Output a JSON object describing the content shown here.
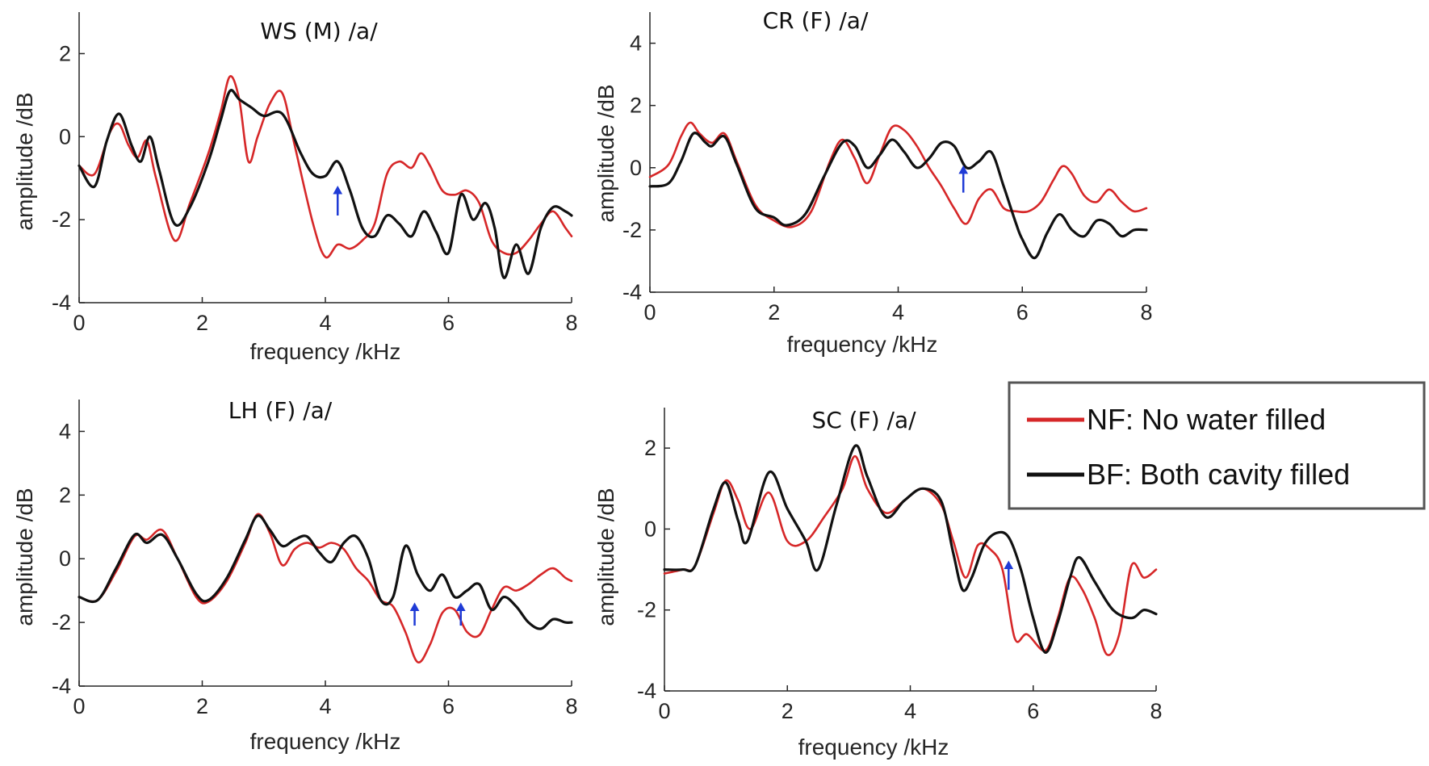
{
  "chart_data": [
    {
      "type": "line",
      "title": "WS (M) /a/",
      "xlabel": "frequency /kHz",
      "ylabel": "amplitude /dB",
      "xlim": [
        0,
        8
      ],
      "ylim": [
        -4,
        3
      ],
      "xticks": [
        "0",
        "2",
        "4",
        "6",
        "8"
      ],
      "yticks": [
        "-4",
        "-2",
        "0",
        "2"
      ],
      "series": [
        {
          "name": "NF: No water filled",
          "color": "#d62728",
          "x": [
            0,
            0.25,
            0.5,
            0.65,
            0.8,
            0.95,
            1.1,
            1.25,
            1.55,
            1.8,
            2.1,
            2.3,
            2.45,
            2.6,
            2.75,
            2.9,
            3.1,
            3.3,
            3.5,
            3.8,
            4.0,
            4.2,
            4.4,
            4.6,
            4.8,
            5.0,
            5.2,
            5.4,
            5.55,
            5.7,
            5.9,
            6.1,
            6.3,
            6.5,
            6.7,
            6.9,
            7.1,
            7.3,
            7.5,
            7.7,
            7.9,
            8.0
          ],
          "y": [
            -0.7,
            -0.9,
            0.1,
            0.3,
            -0.2,
            -0.5,
            -0.1,
            -1.0,
            -2.5,
            -1.6,
            -0.4,
            0.6,
            1.45,
            0.9,
            -0.6,
            0.0,
            0.8,
            1.05,
            -0.2,
            -2.1,
            -2.9,
            -2.6,
            -2.7,
            -2.5,
            -2.1,
            -0.9,
            -0.6,
            -0.75,
            -0.4,
            -0.7,
            -1.3,
            -1.4,
            -1.3,
            -1.6,
            -2.5,
            -2.8,
            -2.8,
            -2.5,
            -2.1,
            -1.8,
            -2.2,
            -2.4
          ]
        },
        {
          "name": "BF: Both cavity filled",
          "color": "#111111",
          "x": [
            0,
            0.25,
            0.45,
            0.65,
            0.85,
            1.0,
            1.15,
            1.3,
            1.55,
            1.8,
            2.1,
            2.3,
            2.45,
            2.6,
            2.8,
            3.0,
            3.3,
            3.6,
            3.8,
            4.0,
            4.2,
            4.4,
            4.6,
            4.8,
            5.0,
            5.2,
            5.4,
            5.6,
            5.8,
            6.0,
            6.2,
            6.4,
            6.6,
            6.75,
            6.9,
            7.1,
            7.3,
            7.5,
            7.7,
            7.9,
            8.0
          ],
          "y": [
            -0.7,
            -1.2,
            -0.1,
            0.55,
            -0.2,
            -0.6,
            0.0,
            -0.8,
            -2.1,
            -1.7,
            -0.6,
            0.4,
            1.1,
            0.9,
            0.7,
            0.5,
            0.55,
            -0.4,
            -0.9,
            -0.95,
            -0.6,
            -1.3,
            -2.2,
            -2.4,
            -1.9,
            -2.1,
            -2.4,
            -1.8,
            -2.3,
            -2.8,
            -1.4,
            -2.0,
            -1.6,
            -2.2,
            -3.4,
            -2.6,
            -3.3,
            -2.2,
            -1.7,
            -1.8,
            -1.9
          ]
        }
      ],
      "annotations": [
        {
          "type": "arrow",
          "x": 4.2,
          "y_tip": -1.2,
          "y_tail": -1.9,
          "color": "#1f3bd6"
        }
      ]
    },
    {
      "type": "line",
      "title": "CR (F) /a/",
      "xlabel": "frequency /kHz",
      "ylabel": "amplitude /dB",
      "xlim": [
        0,
        8
      ],
      "ylim": [
        -4,
        5
      ],
      "xticks": [
        "0",
        "2",
        "4",
        "6",
        "8"
      ],
      "yticks": [
        "-4",
        "-2",
        "0",
        "2",
        "4"
      ],
      "series": [
        {
          "name": "NF: No water filled",
          "color": "#d62728",
          "x": [
            0,
            0.3,
            0.5,
            0.65,
            0.8,
            1.0,
            1.2,
            1.4,
            1.7,
            2.0,
            2.3,
            2.6,
            2.9,
            3.1,
            3.3,
            3.5,
            3.7,
            3.9,
            4.1,
            4.3,
            4.5,
            4.7,
            4.9,
            5.1,
            5.3,
            5.5,
            5.7,
            5.9,
            6.1,
            6.3,
            6.5,
            6.65,
            6.8,
            7.0,
            7.2,
            7.4,
            7.6,
            7.8,
            8.0
          ],
          "y": [
            -0.3,
            0.1,
            1.0,
            1.45,
            1.1,
            0.8,
            1.1,
            0.2,
            -1.2,
            -1.7,
            -1.9,
            -1.4,
            0.2,
            0.9,
            0.3,
            -0.5,
            0.4,
            1.3,
            1.2,
            0.7,
            0.0,
            -0.6,
            -1.3,
            -1.8,
            -1.0,
            -0.7,
            -1.3,
            -1.4,
            -1.4,
            -1.1,
            -0.4,
            0.05,
            -0.2,
            -0.9,
            -1.1,
            -0.7,
            -1.1,
            -1.4,
            -1.3
          ]
        },
        {
          "name": "BF: Both cavity filled",
          "color": "#111111",
          "x": [
            0,
            0.3,
            0.5,
            0.7,
            0.9,
            1.0,
            1.2,
            1.4,
            1.7,
            2.0,
            2.2,
            2.5,
            2.8,
            3.1,
            3.3,
            3.5,
            3.7,
            3.9,
            4.1,
            4.3,
            4.5,
            4.7,
            4.9,
            5.1,
            5.3,
            5.5,
            5.7,
            5.9,
            6.0,
            6.2,
            6.4,
            6.6,
            6.8,
            7.0,
            7.2,
            7.4,
            7.6,
            7.8,
            8.0
          ],
          "y": [
            -0.6,
            -0.5,
            0.2,
            1.1,
            0.8,
            0.7,
            1.0,
            0.1,
            -1.3,
            -1.6,
            -1.85,
            -1.5,
            -0.3,
            0.8,
            0.7,
            0.0,
            0.4,
            0.9,
            0.5,
            0.0,
            0.3,
            0.8,
            0.7,
            0.0,
            0.2,
            0.5,
            -0.6,
            -1.8,
            -2.3,
            -2.9,
            -2.1,
            -1.5,
            -2.0,
            -2.2,
            -1.7,
            -1.8,
            -2.2,
            -2.0,
            -2.0
          ]
        }
      ],
      "annotations": [
        {
          "type": "arrow",
          "x": 5.05,
          "y_tip": 0.05,
          "y_tail": -0.8,
          "color": "#1f3bd6"
        }
      ]
    },
    {
      "type": "line",
      "title": "LH (F) /a/",
      "xlabel": "frequency /kHz",
      "ylabel": "amplitude /dB",
      "xlim": [
        0,
        8
      ],
      "ylim": [
        -4,
        5
      ],
      "xticks": [
        "0",
        "2",
        "4",
        "6",
        "8"
      ],
      "yticks": [
        "-4",
        "-2",
        "0",
        "2",
        "4"
      ],
      "series": [
        {
          "name": "NF: No water filled",
          "color": "#d62728",
          "x": [
            0,
            0.3,
            0.6,
            0.9,
            1.1,
            1.35,
            1.6,
            1.9,
            2.1,
            2.4,
            2.7,
            2.9,
            3.1,
            3.3,
            3.5,
            3.7,
            3.9,
            4.1,
            4.3,
            4.5,
            4.7,
            4.9,
            5.1,
            5.3,
            5.5,
            5.7,
            5.9,
            6.1,
            6.3,
            6.5,
            6.7,
            6.9,
            7.1,
            7.3,
            7.5,
            7.7,
            7.9,
            8.0
          ],
          "y": [
            -1.2,
            -1.3,
            -0.4,
            0.7,
            0.6,
            0.9,
            0.0,
            -1.2,
            -1.35,
            -0.7,
            0.5,
            1.4,
            0.8,
            -0.2,
            0.3,
            0.5,
            0.35,
            0.5,
            0.3,
            -0.3,
            -0.7,
            -1.3,
            -1.5,
            -2.3,
            -3.25,
            -2.7,
            -1.7,
            -1.6,
            -2.3,
            -2.4,
            -1.6,
            -0.9,
            -1.0,
            -0.8,
            -0.5,
            -0.3,
            -0.6,
            -0.7
          ]
        },
        {
          "name": "BF: Both cavity filled",
          "color": "#111111",
          "x": [
            0,
            0.3,
            0.6,
            0.9,
            1.1,
            1.35,
            1.6,
            1.9,
            2.1,
            2.4,
            2.7,
            2.9,
            3.1,
            3.3,
            3.5,
            3.7,
            3.9,
            4.1,
            4.3,
            4.5,
            4.7,
            4.9,
            5.1,
            5.3,
            5.5,
            5.7,
            5.9,
            6.1,
            6.3,
            6.5,
            6.7,
            6.9,
            7.1,
            7.3,
            7.5,
            7.7,
            7.9,
            8.0
          ],
          "y": [
            -1.2,
            -1.3,
            -0.3,
            0.75,
            0.5,
            0.75,
            0.0,
            -1.1,
            -1.3,
            -0.6,
            0.6,
            1.35,
            0.9,
            0.4,
            0.6,
            0.7,
            0.2,
            -0.1,
            0.5,
            0.7,
            0.0,
            -1.3,
            -1.2,
            0.4,
            -0.5,
            -1.0,
            -0.5,
            -1.2,
            -1.0,
            -0.8,
            -1.6,
            -1.2,
            -1.5,
            -2.0,
            -2.2,
            -1.9,
            -2.0,
            -2.0
          ]
        }
      ],
      "annotations": [
        {
          "type": "arrow",
          "x": 5.45,
          "y_tip": -1.4,
          "y_tail": -2.1,
          "color": "#1f3bd6"
        },
        {
          "type": "arrow",
          "x": 6.2,
          "y_tip": -1.4,
          "y_tail": -2.1,
          "color": "#1f3bd6"
        }
      ]
    },
    {
      "type": "line",
      "title": "SC (F) /a/",
      "xlabel": "frequency /kHz",
      "ylabel": "amplitude /dB",
      "xlim": [
        0,
        8
      ],
      "ylim": [
        -4,
        3
      ],
      "xticks": [
        "0",
        "2",
        "4",
        "6",
        "8"
      ],
      "yticks": [
        "-4",
        "-2",
        "0",
        "2"
      ],
      "series": [
        {
          "name": "NF: No water filled",
          "color": "#d62728",
          "x": [
            0,
            0.3,
            0.5,
            0.8,
            1.0,
            1.2,
            1.4,
            1.7,
            2.0,
            2.3,
            2.6,
            2.9,
            3.1,
            3.3,
            3.6,
            3.9,
            4.2,
            4.5,
            4.7,
            4.9,
            5.1,
            5.3,
            5.5,
            5.7,
            5.9,
            6.2,
            6.4,
            6.6,
            6.8,
            7.0,
            7.2,
            7.4,
            7.6,
            7.8,
            8.0
          ],
          "y": [
            -1.1,
            -1.0,
            -0.9,
            0.4,
            1.2,
            0.7,
            0.0,
            0.9,
            -0.3,
            -0.3,
            0.3,
            1.0,
            1.8,
            1.0,
            0.4,
            0.7,
            1.0,
            0.6,
            -0.3,
            -1.2,
            -0.4,
            -0.5,
            -1.0,
            -2.7,
            -2.6,
            -3.0,
            -2.2,
            -1.2,
            -1.5,
            -2.2,
            -3.1,
            -2.6,
            -0.9,
            -1.2,
            -1.0
          ]
        },
        {
          "name": "BF: Both cavity filled",
          "color": "#111111",
          "x": [
            0,
            0.3,
            0.5,
            0.8,
            1.0,
            1.2,
            1.35,
            1.7,
            2.0,
            2.3,
            2.5,
            2.8,
            3.1,
            3.3,
            3.6,
            3.9,
            4.2,
            4.5,
            4.7,
            4.85,
            5.0,
            5.2,
            5.4,
            5.6,
            5.8,
            6.0,
            6.2,
            6.4,
            6.6,
            6.75,
            7.0,
            7.3,
            7.6,
            7.8,
            8.0
          ],
          "y": [
            -1.0,
            -1.0,
            -0.9,
            0.5,
            1.15,
            0.2,
            -0.3,
            1.4,
            0.5,
            -0.3,
            -1.0,
            0.6,
            2.05,
            1.3,
            0.3,
            0.7,
            1.0,
            0.7,
            -0.6,
            -1.5,
            -1.2,
            -0.4,
            -0.1,
            -0.2,
            -1.0,
            -2.2,
            -3.05,
            -2.3,
            -1.2,
            -0.7,
            -1.3,
            -2.0,
            -2.2,
            -2.0,
            -2.1
          ]
        }
      ],
      "annotations": [
        {
          "type": "arrow",
          "x": 5.6,
          "y_tip": -0.8,
          "y_tail": -1.5,
          "color": "#1f3bd6"
        }
      ]
    }
  ],
  "legend": {
    "items": [
      {
        "label": "NF: No water filled",
        "color": "#d62728"
      },
      {
        "label": "BF: Both cavity filled",
        "color": "#111111"
      }
    ],
    "placement": "right"
  }
}
